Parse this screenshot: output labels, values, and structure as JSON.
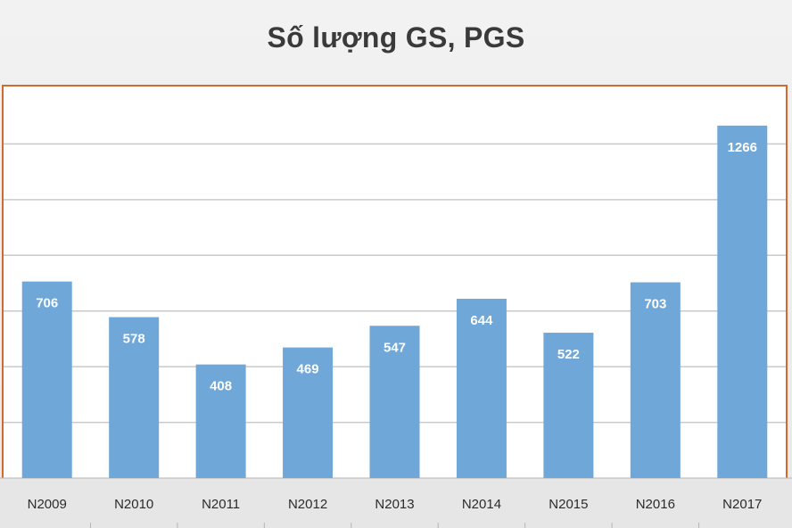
{
  "chart_data": {
    "type": "bar",
    "title": "Số lượng GS, PGS",
    "categories": [
      "N2009",
      "N2010",
      "N2011",
      "N2012",
      "N2013",
      "N2014",
      "N2015",
      "N2016",
      "N2017"
    ],
    "series": [
      {
        "values": [
          706,
          578,
          408,
          469,
          547,
          644,
          522,
          703,
          1266
        ],
        "color": "#6fa7d9"
      }
    ],
    "ylim": [
      0,
      1400
    ],
    "grid": true,
    "data_labels": true,
    "colors": {
      "bar": "#6fa7d9",
      "plot_border": "#d26a2b",
      "gridline": "#c9c9c9",
      "axis_band": "#e6e6e6"
    }
  }
}
